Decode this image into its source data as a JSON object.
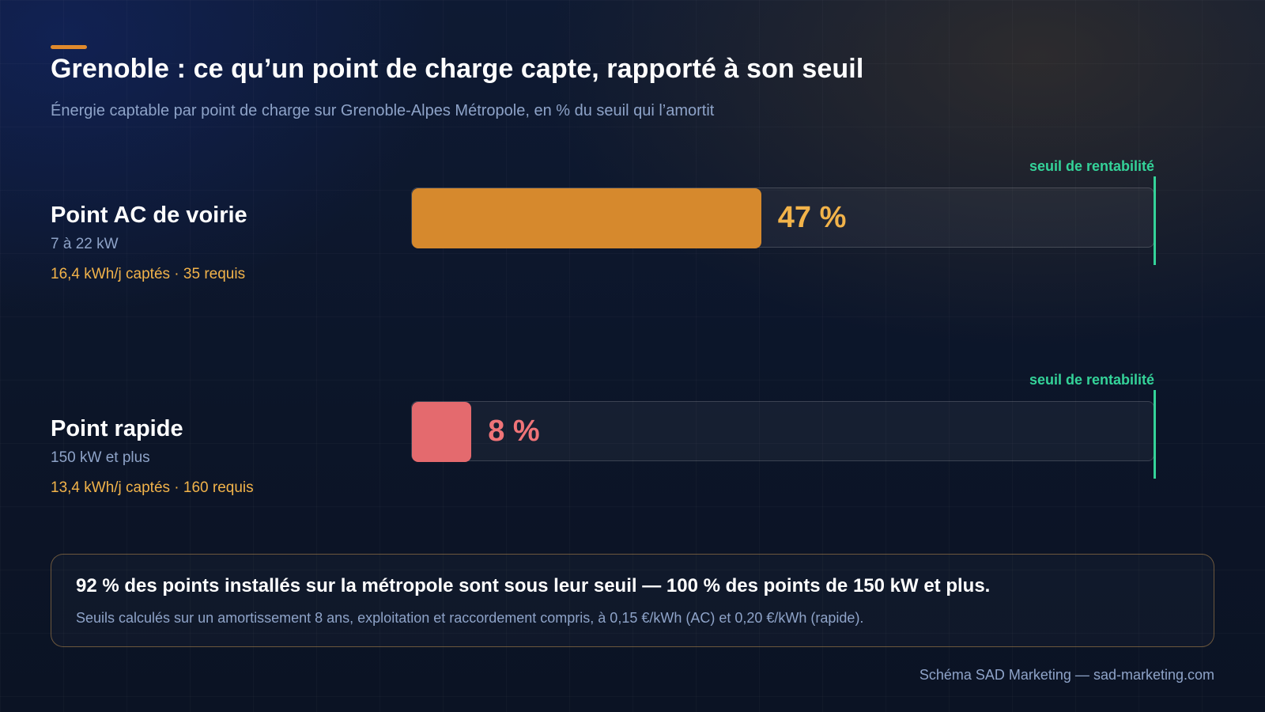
{
  "header": {
    "title": "Grenoble : ce qu’un point de charge capte, rapporté à son seuil",
    "subtitle": "Énergie captable par point de charge sur Grenoble-Alpes Métropole, en % du seuil qui l’amortit"
  },
  "colors": {
    "accent": "#e08a2c",
    "threshold": "#34d399",
    "metrics_text": "#f2b34a"
  },
  "chart_data": {
    "type": "bar",
    "orientation": "horizontal",
    "scale_max": 100,
    "threshold_label": "seuil de rentabilité",
    "threshold_value": 100,
    "bars": [
      {
        "label": "Point AC de voirie",
        "sublabel": "7 à 22 kW",
        "metrics": "16,4 kWh/j captés · 35 requis",
        "value": 47,
        "value_label": "47 %",
        "color": "#d6892d",
        "label_color": "#f2b34a"
      },
      {
        "label": "Point rapide",
        "sublabel": "150 kW et plus",
        "metrics": "13,4 kWh/j captés · 160 requis",
        "value": 8,
        "value_label": "8 %",
        "color": "#e46a6e",
        "label_color": "#f07478"
      }
    ]
  },
  "note": {
    "main": "92 % des points installés sur la métropole sont sous leur seuil — 100 % des points de 150 kW et plus.",
    "sub": "Seuils calculés sur un amortissement 8 ans, exploitation et raccordement compris, à 0,15 €/kWh (AC) et 0,20 €/kWh (rapide)."
  },
  "footer": {
    "credit": "Schéma SAD Marketing — sad-marketing.com"
  }
}
